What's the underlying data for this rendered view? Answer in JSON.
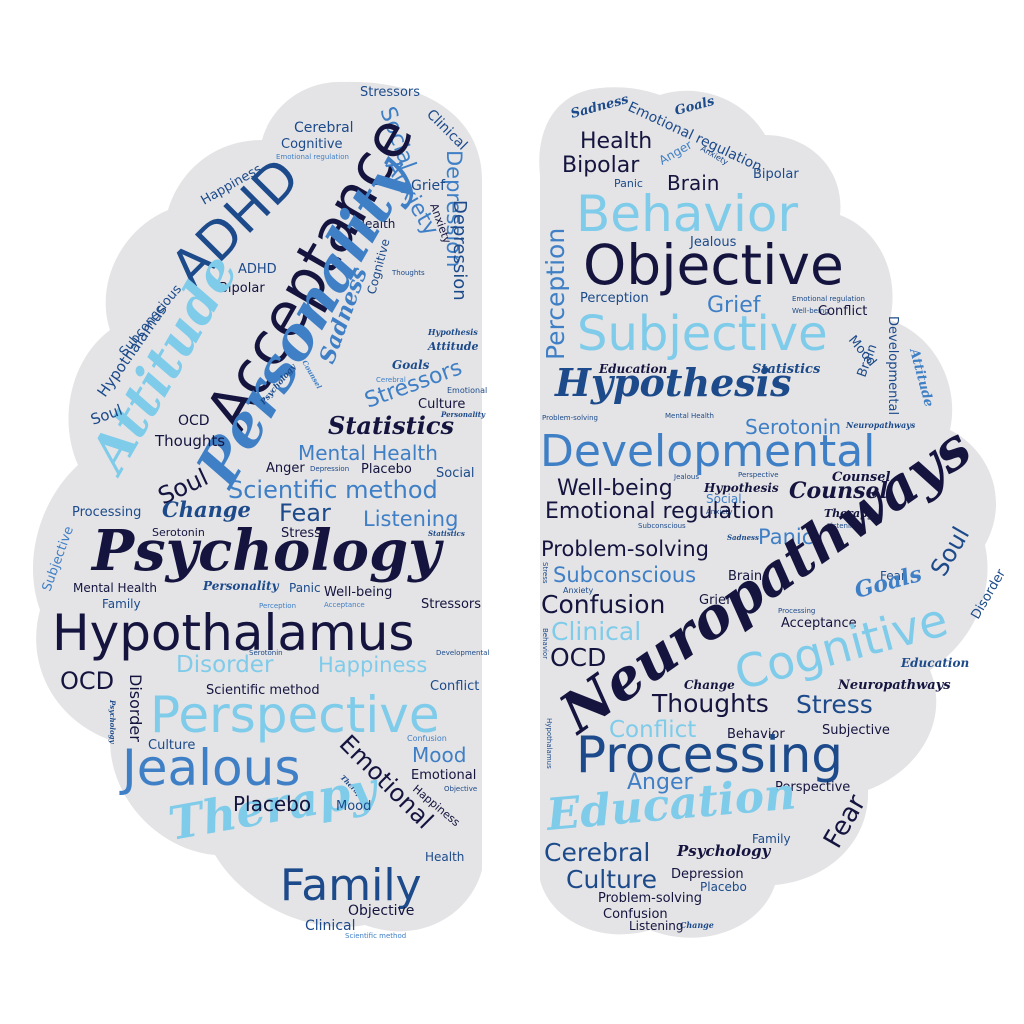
{
  "colors": {
    "background": "#ffffff",
    "brain": "#e4e4e6",
    "navy": "#14143f",
    "dark_blue": "#1c4a8a",
    "mid_blue": "#3f7fc6",
    "light_blue": "#7fcbea"
  },
  "words": {
    "stressors_top": "Stressors",
    "clinical_l1": "Clinical",
    "cerebral_l": "Cerebral",
    "cognitive_l1": "Cognitive",
    "emo_reg_l1": "Emotional regulation",
    "social_l1": "Social",
    "depression_l1": "Depression",
    "happiness_l1": "Happiness",
    "adhd_big": "ADHD",
    "acceptance_big": "Acceptance",
    "anxiety_l": "Anxiety",
    "grief_l": "Grief",
    "health_l1": "Health",
    "depression_l2": "Depression",
    "anxiety_l2": "Anxiety",
    "cognitive_l2": "Cognitive",
    "thoughts_l1": "Thoughts",
    "adhd_sm": "ADHD",
    "bipolar_l": "Bipolar",
    "sadness_l": "Sadness",
    "personality_big": "Personality",
    "subconscious_l": "Subconscious",
    "hypothalamus_l": "Hypothalamus",
    "attitude_big": "Attitude",
    "hypothesis_sm": "Hypothesis",
    "attitude_sm": "Attitude",
    "goals_l": "Goals",
    "psychology_sm": "Psychology",
    "counsel_sm": "Counsel",
    "stressors_mid": "Stressors",
    "cerebral_sm": "Cerebral",
    "emotional_sm": "Emotional",
    "culture_l": "Culture",
    "personality_sm": "Personality",
    "soul_l1": "Soul",
    "ocd_l1": "OCD",
    "thoughts_l2": "Thoughts",
    "statistics_l": "Statistics",
    "mental_health_l1": "Mental Health",
    "anger_l1": "Anger",
    "depression_sm": "Depression",
    "placebo_l1": "Placebo",
    "social_l2": "Social",
    "soul_l2": "Soul",
    "scientific_method_l1": "Scientific method",
    "processing_l1": "Processing",
    "change_l1": "Change",
    "fear_l1": "Fear",
    "listening_l1": "Listening",
    "serotonin_l": "Serotonin",
    "stress_l": "Stress",
    "statistics_sm": "Statistics",
    "subjective_l": "Subjective",
    "psychology_big": "Psychology",
    "mental_health_l2": "Mental Health",
    "personality_l": "Personality",
    "panic_l": "Panic",
    "well_being_l": "Well-being",
    "family_l1": "Family",
    "perception_sm": "Perception",
    "acceptance_sm": "Acceptance",
    "stressors_l3": "Stressors",
    "hypothalamus_big": "Hypothalamus",
    "serotonin_sm": "Serotonin",
    "developmental_sm": "Developmental",
    "ocd_l2": "OCD",
    "disorder_l1": "Disorder",
    "disorder_big": "Disorder",
    "happiness_big": "Happiness",
    "psychology_sm2": "Psychology",
    "scientific_method_l2": "Scientific method",
    "conflict_l1": "Conflict",
    "perspective_big": "Perspective",
    "culture_l2": "Culture",
    "jealous_big": "Jealous",
    "emotional_big": "Emotional",
    "confusion_sm": "Confusion",
    "mood_l1": "Mood",
    "emotional_l2": "Emotional",
    "therapy_sm": "Therapy",
    "objective_sm": "Objective",
    "happiness_l2": "Happiness",
    "therapy_big": "Therapy",
    "placebo_l2": "Placebo",
    "mood_l2": "Mood",
    "health_l2": "Health",
    "family_big": "Family",
    "objective_l": "Objective",
    "clinical_l2": "Clinical",
    "scientific_method_sm": "Scientific method",
    "sadness_r": "Sadness",
    "emo_reg_r1": "Emotional regulation",
    "goals_r1": "Goals",
    "health_r1": "Health",
    "anger_r1": "Anger",
    "anxiety_r1": "Anxiety",
    "bipolar_r1": "Bipolar",
    "panic_r1": "Panic",
    "brain_r1": "Brain",
    "bipolar_r2": "Bipolar",
    "behavior_big": "Behavior",
    "perception_big": "Perception",
    "jealous_r": "Jealous",
    "objective_big": "Objective",
    "perception_r2": "Perception",
    "grief_r": "Grief",
    "emo_reg_r2": "Emotional regulation",
    "well_being_r1": "Well-being",
    "conflict_r1": "Conflict",
    "subjective_big": "Subjective",
    "developmental_r1": "Developmental",
    "attitude_r": "Attitude",
    "mood_r1": "Mood",
    "education_r1": "Education",
    "statistics_r": "Statistics",
    "brain_r2": "Brain",
    "hypothesis_big": "Hypothesis",
    "problem_solving_r1": "Problem-solving",
    "mental_health_r": "Mental Health",
    "neuropathways_r1": "Neuropathways",
    "serotonin_r": "Serotonin",
    "developmental_big": "Developmental",
    "jealous_r2": "Jealous",
    "perspective_r1": "Perspective",
    "counsel_r1": "Counsel",
    "hypothesis_r2": "Hypothesis",
    "well_being_big": "Well-being",
    "counsel_big": "Counsel",
    "social_r": "Social",
    "anxiety_r2": "Anxiety",
    "emo_reg_big": "Emotional regulation",
    "therapy_r1": "Therapy",
    "subconscious_r1": "Subconscious",
    "listening_r": "Listening",
    "sadness_r2": "Sadness",
    "panic_big": "Panic",
    "problem_solving_big": "Problem-solving",
    "neuropathways_big": "Neuropathways",
    "soul_r": "Soul",
    "disorder_r": "Disorder",
    "stress_r1": "Stress",
    "subconscious_big": "Subconscious",
    "brain_r3": "Brain",
    "fear_r1": "Fear",
    "anxiety_r3": "Anxiety",
    "goals_big": "Goals",
    "confusion_big": "Confusion",
    "grief_r2": "Grief",
    "processing_r1": "Processing",
    "acceptance_r": "Acceptance",
    "clinical_big": "Clinical",
    "cognitive_big": "Cognitive",
    "ocd_r": "OCD",
    "behavior_r2": "Behavior",
    "education_r2": "Education",
    "change_r": "Change",
    "thoughts_big": "Thoughts",
    "neuropathways_r2": "Neuropathways",
    "hypothalamus_r": "Hypothalamus",
    "conflict_big": "Conflict",
    "stress_big": "Stress",
    "subjective_r2": "Subjective",
    "behavior_r3": "Behavior",
    "processing_big": "Processing",
    "anger_big": "Anger",
    "perspective_r2": "Perspective",
    "education_big": "Education",
    "fear_big": "Fear",
    "family_r": "Family",
    "cerebral_big": "Cerebral",
    "psychology_r": "Psychology",
    "depression_r": "Depression",
    "culture_big": "Culture",
    "placebo_r": "Placebo",
    "problem_solving_r2": "Problem-solving",
    "confusion_r2": "Confusion",
    "change_r2": "Change",
    "listening_r2": "Listening"
  }
}
